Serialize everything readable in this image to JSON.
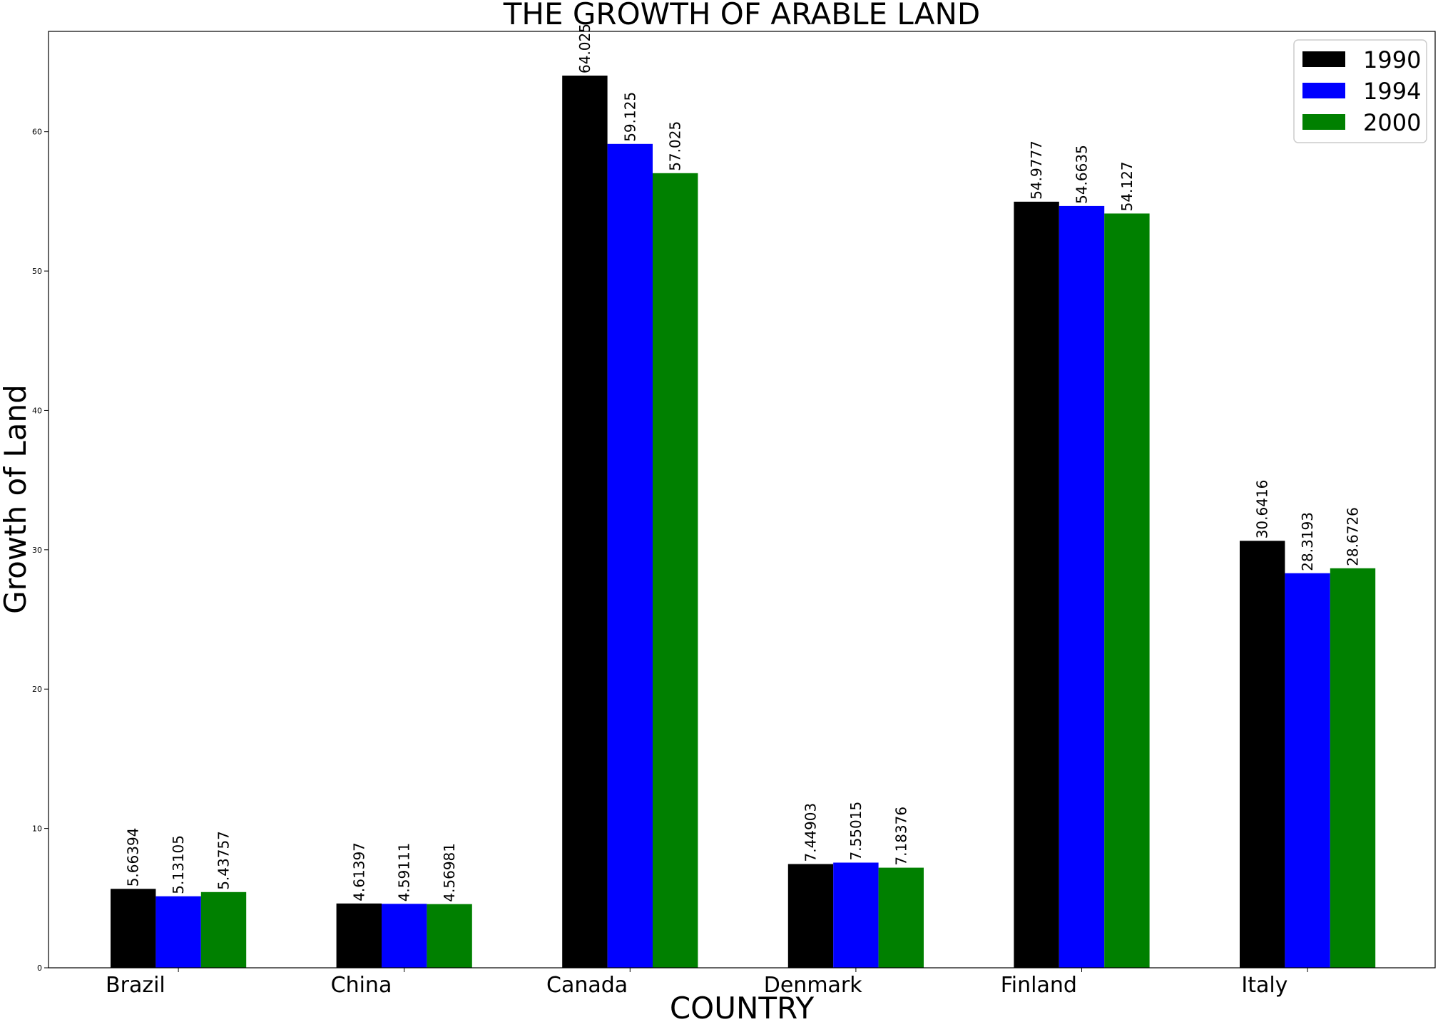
{
  "chart_data": {
    "type": "bar",
    "title": "THE GROWTH OF ARABLE LAND",
    "xlabel": "COUNTRY",
    "ylabel": "Growth of Land",
    "categories": [
      "Brazil",
      "China",
      "Canada",
      "Denmark",
      "Finland",
      "Italy"
    ],
    "series": [
      {
        "name": "1990",
        "color": "#000000",
        "values": [
          5.66394,
          4.61397,
          64.025,
          7.44903,
          54.9777,
          30.6416
        ]
      },
      {
        "name": "1994",
        "color": "#0000ff",
        "values": [
          5.13105,
          4.59111,
          59.125,
          7.55015,
          54.6635,
          28.3193
        ]
      },
      {
        "name": "2000",
        "color": "#008000",
        "values": [
          5.43757,
          4.56981,
          57.025,
          7.18376,
          54.127,
          28.6726
        ]
      }
    ],
    "yticks": [
      0,
      10,
      20,
      30,
      40,
      50,
      60
    ],
    "ylim": [
      0,
      67.2
    ],
    "legend_position": "top-right",
    "grid": false
  }
}
